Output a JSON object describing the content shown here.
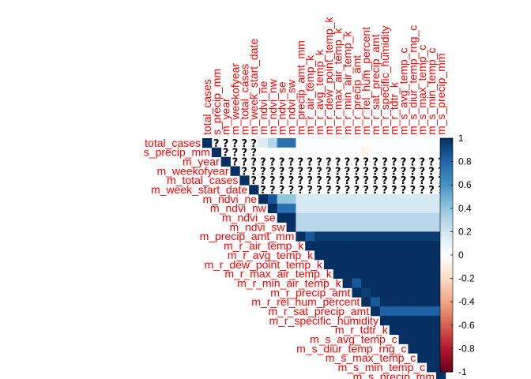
{
  "chart_data": {
    "type": "heatmap",
    "variables": [
      "total_cases",
      "s_precip_mm",
      "m_year",
      "m_weekofyear",
      "m_total_cases",
      "m_week_start_date",
      "m_ndvi_ne",
      "m_ndvi_nw",
      "m_ndvi_se",
      "m_ndvi_sw",
      "m_precip_amt_mm",
      "m_r_air_temp_k",
      "m_r_avg_temp_k",
      "m_r_dew_point_temp_k",
      "m_r_max_air_temp_k",
      "m_r_min_air_temp_k",
      "m_r_precip_amt",
      "m_r_rel_hum_percent",
      "m_r_sat_precip_amt",
      "m_r_specific_humidity",
      "m_r_tdtr_k",
      "m_s_avg_temp_c",
      "m_s_diur_temp_rng_c",
      "m_s_max_temp_c",
      "m_s_min_temp_c",
      "m_s_precip_mm"
    ],
    "row_labels": [
      "total_cases",
      "s_precip_mm",
      "m_year",
      "m_weekofyear",
      "m_total_cases",
      "m_week_start_date",
      "m_ndvi_ne",
      "m_ndvi_nw",
      "m_ndvi_se",
      "m_ndvi_sw",
      "m_precip_amt_mm",
      "m_r_air_temp_k",
      "m_r_avg_temp_k",
      "m_r_dew_point_temp_k",
      "m_r_max_air_temp_k",
      "m_r_min_air_temp_k",
      "m_r_precip_amt",
      "m_r_rel_hum_percent",
      "m_r_sat_precip_amt",
      "m_r_specific_humidity",
      "m_r_tdtr_k",
      "m_s_avg_temp_c",
      "m_s_diur_temp_rng_c",
      "m_s_max_temp_c",
      "m_s_min_temp_c",
      "m_s_precip_mm"
    ],
    "layout": "upper-triangle",
    "na_symbol": "?",
    "na_cells": [
      [
        0,
        1
      ],
      [
        0,
        2
      ],
      [
        0,
        3
      ],
      [
        0,
        4
      ],
      [
        0,
        5
      ],
      [
        1,
        2
      ],
      [
        1,
        3
      ],
      [
        1,
        4
      ],
      [
        1,
        5
      ],
      [
        2,
        3
      ],
      [
        2,
        4
      ],
      [
        2,
        5
      ],
      [
        2,
        6
      ],
      [
        2,
        7
      ],
      [
        2,
        8
      ],
      [
        2,
        9
      ],
      [
        2,
        10
      ],
      [
        2,
        11
      ],
      [
        2,
        12
      ],
      [
        2,
        13
      ],
      [
        2,
        14
      ],
      [
        2,
        15
      ],
      [
        2,
        16
      ],
      [
        2,
        17
      ],
      [
        2,
        18
      ],
      [
        2,
        19
      ],
      [
        2,
        20
      ],
      [
        2,
        21
      ],
      [
        2,
        22
      ],
      [
        2,
        23
      ],
      [
        2,
        24
      ],
      [
        2,
        25
      ],
      [
        3,
        4
      ],
      [
        3,
        5
      ],
      [
        3,
        6
      ],
      [
        3,
        7
      ],
      [
        3,
        8
      ],
      [
        3,
        9
      ],
      [
        3,
        10
      ],
      [
        3,
        11
      ],
      [
        3,
        12
      ],
      [
        3,
        13
      ],
      [
        3,
        14
      ],
      [
        3,
        15
      ],
      [
        3,
        16
      ],
      [
        3,
        17
      ],
      [
        3,
        18
      ],
      [
        3,
        19
      ],
      [
        3,
        20
      ],
      [
        3,
        21
      ],
      [
        3,
        22
      ],
      [
        3,
        23
      ],
      [
        3,
        24
      ],
      [
        3,
        25
      ],
      [
        4,
        5
      ],
      [
        4,
        6
      ],
      [
        4,
        7
      ],
      [
        4,
        8
      ],
      [
        4,
        9
      ],
      [
        4,
        10
      ],
      [
        4,
        11
      ],
      [
        4,
        12
      ],
      [
        4,
        13
      ],
      [
        4,
        14
      ],
      [
        4,
        15
      ],
      [
        4,
        16
      ],
      [
        4,
        17
      ],
      [
        4,
        18
      ],
      [
        4,
        19
      ],
      [
        4,
        20
      ],
      [
        4,
        21
      ],
      [
        4,
        22
      ],
      [
        4,
        23
      ],
      [
        4,
        24
      ],
      [
        4,
        25
      ],
      [
        5,
        6
      ],
      [
        5,
        7
      ],
      [
        5,
        8
      ],
      [
        5,
        9
      ],
      [
        5,
        10
      ],
      [
        5,
        11
      ],
      [
        5,
        12
      ],
      [
        5,
        13
      ],
      [
        5,
        14
      ],
      [
        5,
        15
      ],
      [
        5,
        16
      ],
      [
        5,
        17
      ],
      [
        5,
        18
      ],
      [
        5,
        19
      ],
      [
        5,
        20
      ],
      [
        5,
        21
      ],
      [
        5,
        22
      ],
      [
        5,
        23
      ],
      [
        5,
        24
      ],
      [
        5,
        25
      ]
    ],
    "row_defaults": [
      0.02,
      0.02,
      null,
      null,
      null,
      null,
      0.18,
      0.18,
      0.28,
      0.28,
      0.95,
      1.0,
      1.0,
      1.0,
      1.0,
      1.0,
      1.0,
      1.0,
      1.0,
      1.0,
      1.0,
      1.0,
      1.0,
      1.0,
      1.0,
      1.0
    ],
    "cell_overrides": [
      [
        0,
        6,
        0.15
      ],
      [
        0,
        7,
        0.3
      ],
      [
        0,
        8,
        0.75
      ],
      [
        0,
        9,
        0.75
      ],
      [
        1,
        17,
        -0.05
      ],
      [
        6,
        7,
        0.85
      ],
      [
        6,
        8,
        0.4
      ],
      [
        6,
        9,
        0.4
      ],
      [
        7,
        8,
        0.75
      ],
      [
        7,
        9,
        0.75
      ],
      [
        8,
        9,
        1.0
      ],
      [
        10,
        11,
        0.85
      ],
      [
        15,
        16,
        0.85
      ],
      [
        16,
        17,
        0.95
      ],
      [
        17,
        18,
        0.85
      ],
      [
        18,
        19,
        0.82
      ],
      [
        18,
        20,
        0.82
      ],
      [
        18,
        21,
        0.82
      ],
      [
        18,
        22,
        0.82
      ],
      [
        18,
        23,
        0.82
      ],
      [
        18,
        24,
        0.82
      ],
      [
        18,
        25,
        0.82
      ]
    ],
    "color_scale": {
      "min": -1,
      "max": 1,
      "stops": [
        "#67001f",
        "#b2182b",
        "#d6604d",
        "#f4a582",
        "#fddbc7",
        "#ffffff",
        "#d1e5f0",
        "#92c5de",
        "#4393c3",
        "#2166ac",
        "#053061"
      ]
    },
    "colorbar_ticks": [
      "1",
      "0.8",
      "0.6",
      "0.4",
      "0.2",
      "0",
      "-0.2",
      "-0.4",
      "-0.6",
      "-0.8",
      "-1"
    ],
    "label_color": "#ff0000"
  }
}
